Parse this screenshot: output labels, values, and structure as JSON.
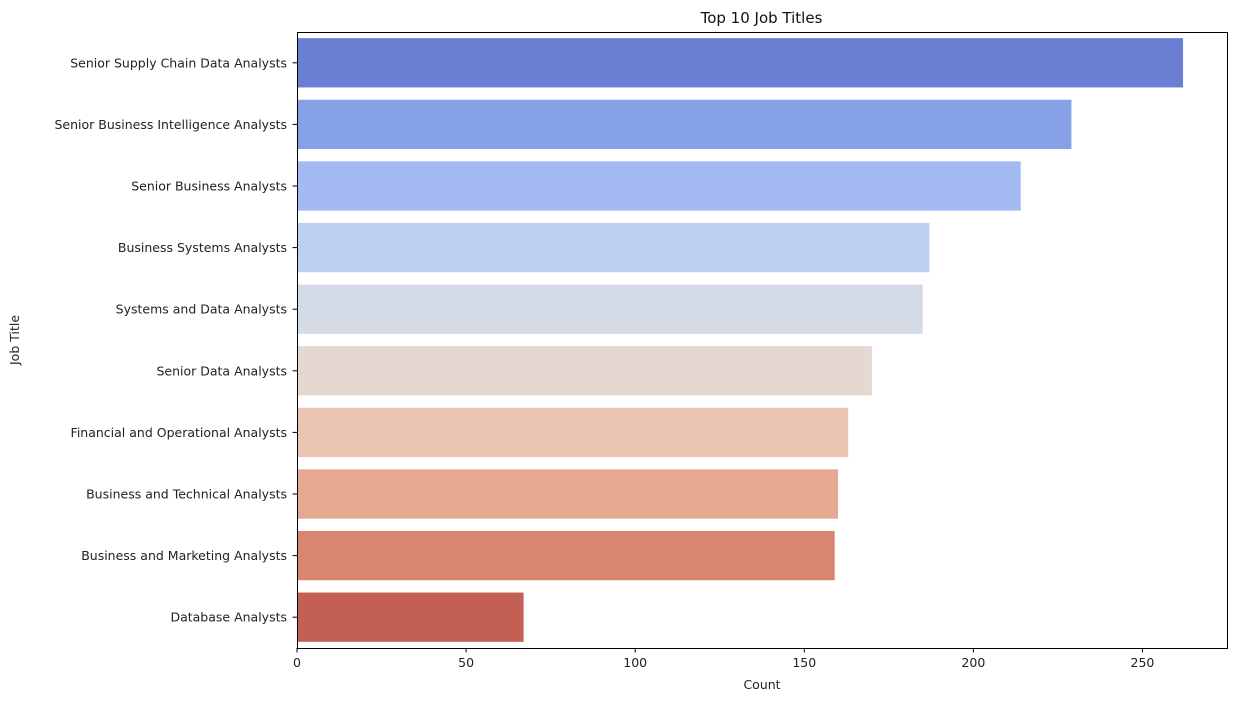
{
  "chart_data": {
    "type": "bar",
    "orientation": "horizontal",
    "title": "Top 10 Job Titles",
    "xlabel": "Count",
    "ylabel": "Job Title",
    "xlim": [
      0,
      275
    ],
    "xticks": [
      0,
      50,
      100,
      150,
      200,
      250
    ],
    "grid": false,
    "categories": [
      "Senior Supply Chain Data Analysts",
      "Senior Business Intelligence Analysts",
      "Senior Business Analysts",
      "Business Systems Analysts",
      "Systems and Data Analysts",
      "Senior Data Analysts",
      "Financial and Operational Analysts",
      "Business and Technical Analysts",
      "Business and Marketing Analysts",
      "Database Analysts"
    ],
    "values": [
      262,
      229,
      214,
      187,
      185,
      170,
      163,
      160,
      159,
      67
    ],
    "colors": [
      "#6a7fd3",
      "#86a1e6",
      "#a3bbf2",
      "#bdd0f2",
      "#d5dbe6",
      "#e4d8d0",
      "#ebc5b2",
      "#e5a891",
      "#d98671",
      "#c35f53"
    ]
  }
}
